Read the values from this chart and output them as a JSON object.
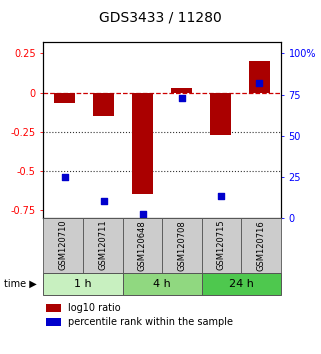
{
  "title": "GDS3433 / 11280",
  "samples": [
    "GSM120710",
    "GSM120711",
    "GSM120648",
    "GSM120708",
    "GSM120715",
    "GSM120716"
  ],
  "log10_ratio": [
    -0.07,
    -0.15,
    -0.65,
    0.03,
    -0.27,
    0.2
  ],
  "percentile_rank": [
    25,
    10,
    2,
    73,
    13,
    82
  ],
  "time_groups": [
    {
      "label": "1 h",
      "start": 0,
      "end": 2,
      "color": "#c8f0c0"
    },
    {
      "label": "4 h",
      "start": 2,
      "end": 4,
      "color": "#90d880"
    },
    {
      "label": "24 h",
      "start": 4,
      "end": 6,
      "color": "#4ec84e"
    }
  ],
  "bar_color": "#aa0000",
  "dot_color": "#0000cc",
  "left_yticks": [
    0.25,
    0.0,
    -0.25,
    -0.5,
    -0.75
  ],
  "right_yticks": [
    100,
    75,
    50,
    25,
    0
  ],
  "ylim_left": [
    -0.8,
    0.32
  ],
  "ylim_right": [
    0,
    106.67
  ],
  "legend_labels": [
    "log10 ratio",
    "percentile rank within the sample"
  ],
  "sample_box_color": "#cccccc",
  "sample_box_edge": "#555555",
  "hline_zero_color": "#cc0000",
  "hline_dotted_color": "#333333",
  "title_fontsize": 10,
  "tick_fontsize": 7,
  "sample_fontsize": 6,
  "time_fontsize": 8,
  "legend_fontsize": 7
}
